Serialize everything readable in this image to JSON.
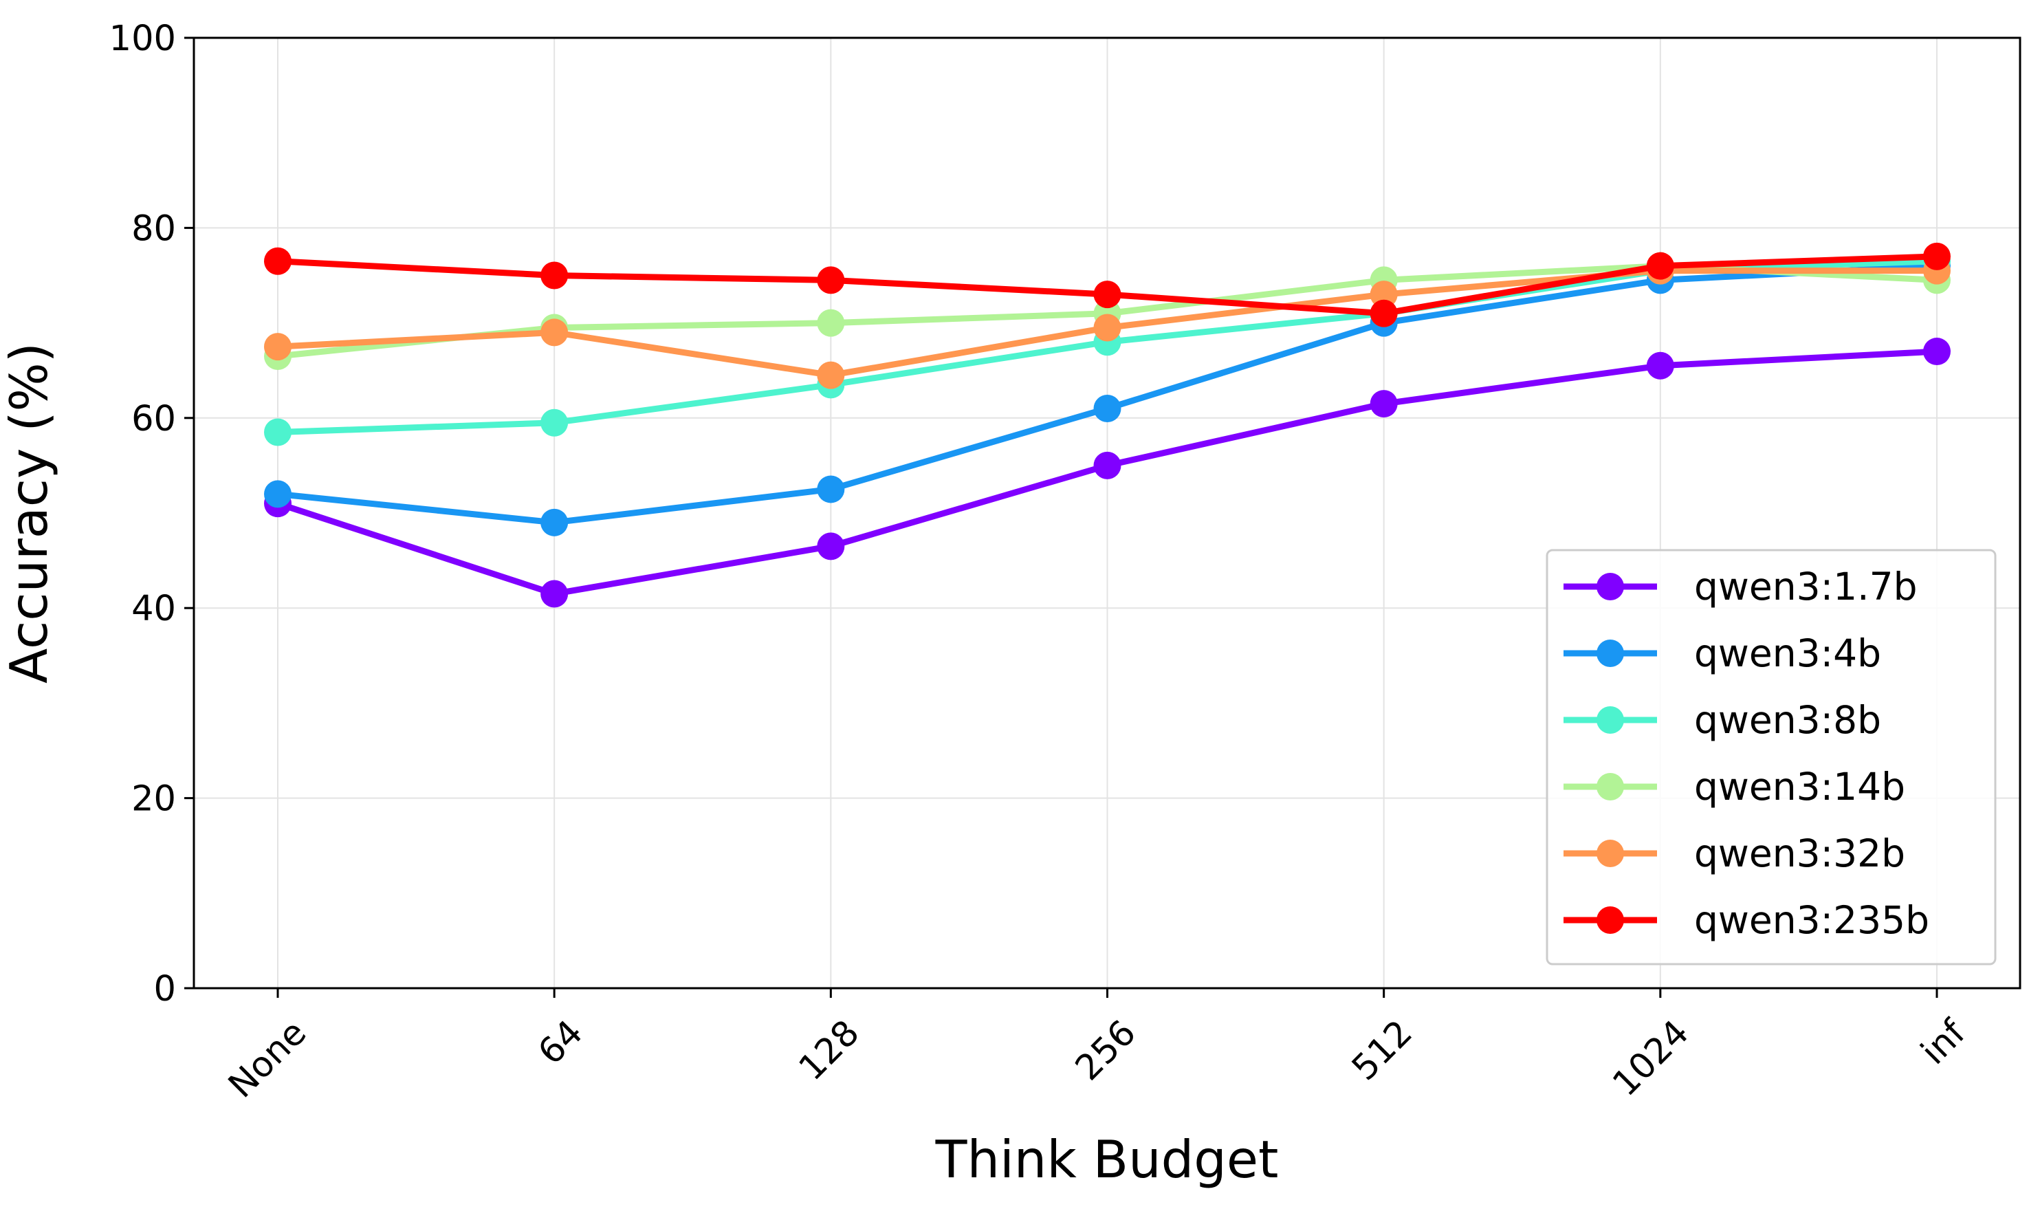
{
  "chart_data": {
    "type": "line",
    "title": "",
    "xlabel": "Think Budget",
    "ylabel": "Accuracy (%)",
    "categories": [
      "None",
      "64",
      "128",
      "256",
      "512",
      "1024",
      "inf"
    ],
    "ylim": [
      0,
      100
    ],
    "yticks": [
      0,
      20,
      40,
      60,
      80,
      100
    ],
    "grid": true,
    "legend_position": "lower-right",
    "series": [
      {
        "name": "qwen3:1.7b",
        "color": "#8000ff",
        "values": [
          51.0,
          41.5,
          46.5,
          55.0,
          61.5,
          65.5,
          67.0
        ]
      },
      {
        "name": "qwen3:4b",
        "color": "#1996f3",
        "values": [
          52.0,
          49.0,
          52.5,
          61.0,
          70.0,
          74.5,
          76.0
        ]
      },
      {
        "name": "qwen3:8b",
        "color": "#4df3ce",
        "values": [
          58.5,
          59.5,
          63.5,
          68.0,
          71.0,
          75.5,
          76.5
        ]
      },
      {
        "name": "qwen3:14b",
        "color": "#b2f396",
        "values": [
          66.5,
          69.5,
          70.0,
          71.0,
          74.5,
          76.0,
          74.5
        ]
      },
      {
        "name": "qwen3:32b",
        "color": "#ff964f",
        "values": [
          67.5,
          69.0,
          64.5,
          69.5,
          73.0,
          75.5,
          75.5
        ]
      },
      {
        "name": "qwen3:235b",
        "color": "#ff0000",
        "values": [
          76.5,
          75.0,
          74.5,
          73.0,
          71.0,
          76.0,
          77.0
        ]
      }
    ]
  }
}
